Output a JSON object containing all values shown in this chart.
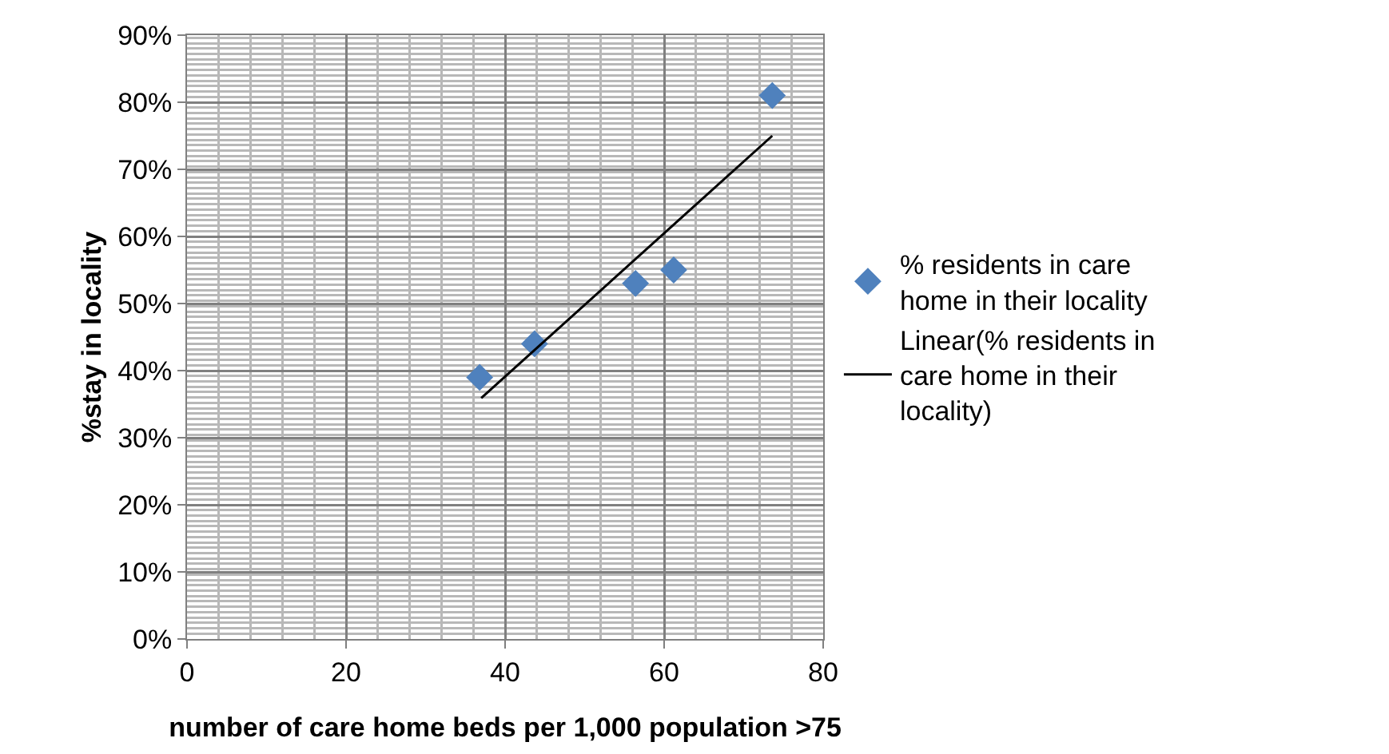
{
  "chart_data": {
    "type": "scatter",
    "xlabel": "number of care home beds per 1,000 population >75",
    "ylabel": "%stay in locality",
    "series": [
      {
        "name": "% residents in care home in their locality",
        "color": "#4f81bd",
        "marker": "diamond",
        "x": [
          36.8,
          43.7,
          56.4,
          61.2,
          73.6
        ],
        "values": [
          39,
          44,
          53,
          55,
          81
        ]
      },
      {
        "name": "Linear(% residents in care home in their locality)",
        "type": "line",
        "color": "#000000",
        "marker": "none",
        "x": [
          37,
          73.6
        ],
        "values": [
          35.9,
          75
        ]
      }
    ],
    "xlim": [
      0,
      80
    ],
    "xticks": [
      0,
      20,
      40,
      60,
      80
    ],
    "ylim": [
      0,
      90
    ],
    "yticks": [
      {
        "value": 0,
        "label": "0%"
      },
      {
        "value": 10,
        "label": "10%"
      },
      {
        "value": 20,
        "label": "20%"
      },
      {
        "value": 30,
        "label": "30%"
      },
      {
        "value": 40,
        "label": "40%"
      },
      {
        "value": 50,
        "label": "50%"
      },
      {
        "value": 60,
        "label": "60%"
      },
      {
        "value": 70,
        "label": "70%"
      },
      {
        "value": 80,
        "label": "80%"
      },
      {
        "value": 90,
        "label": "90%"
      }
    ],
    "grid": true,
    "legend": "right"
  }
}
